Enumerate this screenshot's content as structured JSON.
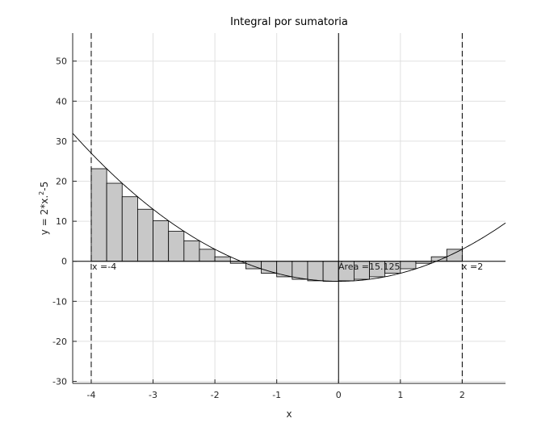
{
  "chart_data": {
    "type": "bar",
    "title": "Integral por sumatoria",
    "xlabel": "x",
    "ylabel_base": "y = 2*x.",
    "ylabel_sup": "2",
    "ylabel_tail": "-5",
    "xlim": [
      -4.3,
      2.7
    ],
    "ylim": [
      -30.5,
      57
    ],
    "xticks": [
      -4,
      -3,
      -2,
      -1,
      0,
      1,
      2
    ],
    "yticks": [
      -30,
      -20,
      -10,
      0,
      10,
      20,
      30,
      40,
      50
    ],
    "grid": true,
    "function": "2*x^2-5",
    "interval": [
      -4,
      2
    ],
    "bar_width": 0.25,
    "bars_x_left": [
      -4,
      -3.75,
      -3.5,
      -3.25,
      -3,
      -2.75,
      -2.5,
      -2.25,
      -2,
      -1.75,
      -1.5,
      -1.25,
      -1,
      -0.75,
      -0.5,
      -0.25,
      0,
      0.25,
      0.5,
      0.75,
      1,
      1.25,
      1.5,
      1.75
    ],
    "bars_height": [
      23.125,
      19.5,
      16.125,
      13,
      10.125,
      7.5,
      5.125,
      3,
      1.125,
      -0.5,
      -1.875,
      -3,
      -3.875,
      -4.5,
      -4.875,
      -5,
      -4.875,
      -4.5,
      -3.875,
      -3,
      -1.875,
      -0.5,
      1.125,
      3
    ],
    "annotations": {
      "left_limit": "x =-4",
      "right_limit": "x =2",
      "area": "Área =15.125"
    },
    "colors": {
      "bar_fill": "#c8c8c8",
      "bar_edge": "#000000",
      "curve": "#000000",
      "grid": "#e0e0e0"
    }
  }
}
